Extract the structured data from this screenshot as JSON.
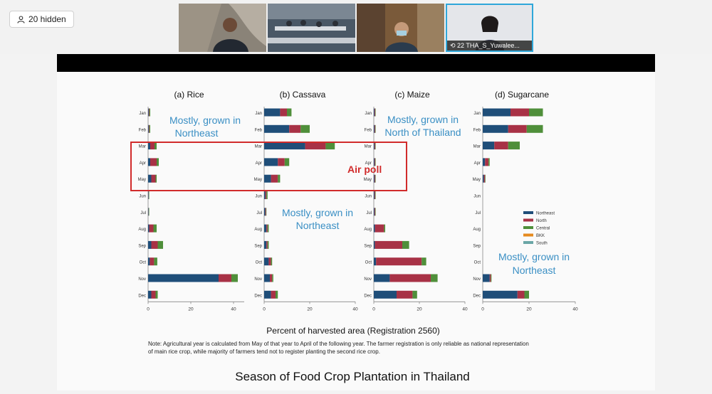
{
  "meeting": {
    "hidden_button": "20 hidden",
    "participants": [
      {
        "name": ""
      },
      {
        "name": ""
      },
      {
        "name": ""
      },
      {
        "name": "22 THA_S_Yuwalee..."
      }
    ]
  },
  "slide": {
    "title": "Season of Food Crop Plantation in Thailand",
    "xlabel": "Percent of harvested area (Registration 2560)",
    "note_line1": "Note: Agricultural year is calculated from May of that year to April of the following year. The farmer registration is only reliable as national representation",
    "note_line2": "of main rice crop, while majority of farmers tend not to register planting the second rice crop.",
    "air_text": "Air poll",
    "annotations": [
      "Mostly, grown in",
      "Northeast",
      "Mostly, grown in",
      "Northeast",
      "Mostly, grown in",
      "North of Thailand",
      "Mostly, grown in",
      "Northeast"
    ]
  },
  "chart_data": [
    {
      "type": "bar",
      "orientation": "horizontal",
      "stacked": true,
      "title": "(a) Rice",
      "categories": [
        "Jan",
        "Feb",
        "Mar",
        "Apr",
        "May",
        "Jun",
        "Jul",
        "Aug",
        "Sep",
        "Oct",
        "Nov",
        "Dec"
      ],
      "xlim": [
        0,
        45
      ],
      "xticks": [
        0,
        20,
        40
      ],
      "series": [
        {
          "name": "Northeast",
          "values": [
            0.3,
            0.3,
            1,
            1,
            1.5,
            0.2,
            0.2,
            0.5,
            1.5,
            0.8,
            33,
            1.5
          ]
        },
        {
          "name": "North",
          "values": [
            0.3,
            0.3,
            2,
            3,
            2,
            0.1,
            0.1,
            2,
            3,
            2,
            6,
            2
          ]
        },
        {
          "name": "Central",
          "values": [
            0.4,
            0.4,
            1,
            1,
            0.5,
            0.2,
            0.2,
            1.5,
            2.5,
            1.5,
            3,
            1
          ]
        },
        {
          "name": "BKK",
          "values": [
            0,
            0,
            0,
            0,
            0,
            0,
            0,
            0,
            0,
            0,
            0,
            0
          ]
        },
        {
          "name": "South",
          "values": [
            0,
            0,
            0,
            0,
            0,
            0,
            0,
            0,
            0,
            0,
            0,
            0
          ]
        }
      ]
    },
    {
      "type": "bar",
      "orientation": "horizontal",
      "stacked": true,
      "title": "(b) Cassava",
      "categories": [
        "Jan",
        "Feb",
        "Mar",
        "Apr",
        "May",
        "Jun",
        "Jul",
        "Aug",
        "Sep",
        "Oct",
        "Nov",
        "Dec"
      ],
      "xlim": [
        0,
        40
      ],
      "xticks": [
        0,
        20,
        40
      ],
      "series": [
        {
          "name": "Northeast",
          "values": [
            7,
            11,
            18,
            6,
            3,
            0.5,
            0.5,
            1,
            1,
            2,
            2.5,
            3
          ]
        },
        {
          "name": "North",
          "values": [
            3,
            5,
            9,
            3,
            3,
            0.5,
            0.3,
            0.5,
            0.5,
            1,
            1,
            2
          ]
        },
        {
          "name": "Central",
          "values": [
            2,
            4,
            4,
            2,
            1,
            0.5,
            0.2,
            0.5,
            0.5,
            0.5,
            0.5,
            1
          ]
        },
        {
          "name": "BKK",
          "values": [
            0,
            0,
            0,
            0,
            0,
            0,
            0,
            0,
            0,
            0,
            0,
            0
          ]
        },
        {
          "name": "South",
          "values": [
            0,
            0,
            0,
            0,
            0,
            0,
            0,
            0,
            0,
            0,
            0,
            0
          ]
        }
      ]
    },
    {
      "type": "bar",
      "orientation": "horizontal",
      "stacked": true,
      "title": "(c) Maize",
      "categories": [
        "Jan",
        "Feb",
        "Mar",
        "Apr",
        "May",
        "Jun",
        "Jul",
        "Aug",
        "Sep",
        "Oct",
        "Nov",
        "Dec"
      ],
      "xlim": [
        0,
        40
      ],
      "xticks": [
        0,
        20,
        40
      ],
      "series": [
        {
          "name": "Northeast",
          "values": [
            0.3,
            0.3,
            0.3,
            0.3,
            0.3,
            0.3,
            0.3,
            0.5,
            0.5,
            1,
            7,
            10
          ]
        },
        {
          "name": "North",
          "values": [
            0.3,
            0.3,
            0.3,
            0.3,
            0.3,
            0.3,
            0.3,
            4,
            12,
            20,
            18,
            7
          ]
        },
        {
          "name": "Central",
          "values": [
            0.2,
            0.2,
            0.2,
            0.2,
            0.2,
            0.2,
            0.2,
            0.5,
            3,
            2,
            3,
            2
          ]
        },
        {
          "name": "BKK",
          "values": [
            0,
            0,
            0,
            0,
            0,
            0,
            0,
            0,
            0,
            0,
            0,
            0
          ]
        },
        {
          "name": "South",
          "values": [
            0,
            0,
            0,
            0,
            0,
            0,
            0,
            0,
            0,
            0,
            0,
            0
          ]
        }
      ]
    },
    {
      "type": "bar",
      "orientation": "horizontal",
      "stacked": true,
      "title": "(d) Sugarcane",
      "categories": [
        "Jan",
        "Feb",
        "Mar",
        "Apr",
        "May",
        "Jun",
        "Jul",
        "Aug",
        "Sep",
        "Oct",
        "Nov",
        "Dec"
      ],
      "xlim": [
        0,
        40
      ],
      "xticks": [
        0,
        20,
        40
      ],
      "series": [
        {
          "name": "Northeast",
          "values": [
            12,
            11,
            5,
            1,
            0.5,
            0,
            0,
            0,
            0,
            0,
            3,
            15
          ]
        },
        {
          "name": "North",
          "values": [
            8,
            8,
            6,
            1.5,
            0.5,
            0,
            0,
            0,
            0,
            0,
            0.5,
            3
          ]
        },
        {
          "name": "Central",
          "values": [
            6,
            7,
            5,
            0.5,
            0.2,
            0,
            0,
            0,
            0,
            0,
            0.3,
            2
          ]
        },
        {
          "name": "BKK",
          "values": [
            0,
            0,
            0,
            0,
            0,
            0,
            0,
            0,
            0,
            0,
            0,
            0
          ]
        },
        {
          "name": "South",
          "values": [
            0,
            0,
            0,
            0,
            0,
            0,
            0,
            0,
            0,
            0,
            0,
            0
          ]
        }
      ],
      "legend": "right"
    }
  ],
  "colors": {
    "Northeast": "#1f4e79",
    "North": "#a83246",
    "Central": "#4f8f3a",
    "BKK": "#e58a1f",
    "South": "#6aa6a6",
    "annotation": "#3a8fc4",
    "highlight": "#d12b2b"
  }
}
